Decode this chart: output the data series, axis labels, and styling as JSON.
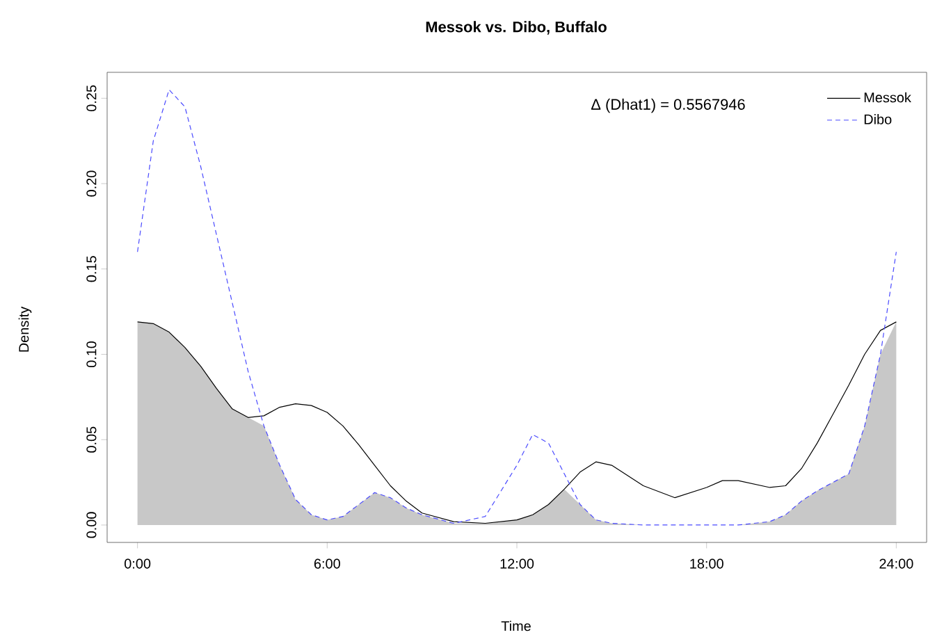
{
  "chart_data": {
    "type": "line",
    "title": "Messok vs. Dibo, Buffalo",
    "xlabel": "Time",
    "ylabel": "Density",
    "annotations": [
      "Δ (Dhat1) = 0.5567946"
    ],
    "xlim": [
      -0.96,
      24.96
    ],
    "ylim": [
      -0.0102,
      0.2652
    ],
    "xticks": [
      {
        "value": 0,
        "label": "0:00"
      },
      {
        "value": 6,
        "label": "6:00"
      },
      {
        "value": 12,
        "label": "12:00"
      },
      {
        "value": 18,
        "label": "18:00"
      },
      {
        "value": 24,
        "label": "24:00"
      }
    ],
    "yticks": [
      {
        "value": 0,
        "label": "0.00"
      },
      {
        "value": 0.05,
        "label": "0.05"
      },
      {
        "value": 0.1,
        "label": "0.10"
      },
      {
        "value": 0.15,
        "label": "0.15"
      },
      {
        "value": 0.2,
        "label": "0.20"
      },
      {
        "value": 0.25,
        "label": "0.25"
      }
    ],
    "grid": false,
    "legend": "top right",
    "marker": "none",
    "series": [
      {
        "type": "area",
        "color": "#c8c8c8",
        "x": [
          0,
          0.5,
          1,
          1.5,
          2,
          2.5,
          3,
          3.5,
          4,
          4.5,
          5,
          5.5,
          6,
          6.5,
          7,
          7.5,
          8,
          8.5,
          9,
          10,
          11,
          12,
          12.5,
          13,
          13.5,
          14,
          14.5,
          15,
          16,
          17,
          18,
          18.5,
          19,
          20,
          20.5,
          21,
          21.5,
          22,
          22.5,
          23,
          23.5,
          24
        ],
        "values": [
          0.119,
          0.118,
          0.113,
          0.104,
          0.093,
          0.08,
          0.068,
          0.063,
          0.058,
          0.035,
          0.015,
          0.006,
          0.003,
          0.005,
          0.012,
          0.019,
          0.016,
          0.01,
          0.006,
          0.001,
          0.001,
          0.003,
          0.006,
          0.012,
          0.021,
          0.012,
          0.003,
          0.001,
          0,
          0,
          0,
          0,
          0,
          0.002,
          0.006,
          0.014,
          0.02,
          0.025,
          0.03,
          0.058,
          0.1,
          0.119
        ]
      },
      {
        "name": "Messok",
        "color": "#000000",
        "line_style": "solid",
        "x": [
          0,
          0.5,
          1,
          1.5,
          2,
          2.5,
          3,
          3.5,
          4,
          4.5,
          5,
          5.5,
          6,
          6.5,
          7,
          7.5,
          8,
          8.5,
          9,
          10,
          11,
          12,
          12.5,
          13,
          13.5,
          14,
          14.5,
          15,
          16,
          17,
          18,
          18.5,
          19,
          20,
          20.5,
          21,
          21.5,
          22,
          22.5,
          23,
          23.5,
          24
        ],
        "values": [
          0.119,
          0.118,
          0.113,
          0.104,
          0.093,
          0.08,
          0.068,
          0.063,
          0.064,
          0.069,
          0.071,
          0.07,
          0.066,
          0.058,
          0.047,
          0.035,
          0.023,
          0.014,
          0.007,
          0.002,
          0.001,
          0.003,
          0.006,
          0.012,
          0.021,
          0.031,
          0.037,
          0.035,
          0.023,
          0.016,
          0.022,
          0.026,
          0.026,
          0.022,
          0.023,
          0.033,
          0.048,
          0.065,
          0.082,
          0.1,
          0.114,
          0.119
        ]
      },
      {
        "name": "Dibo",
        "color": "#4a4aff",
        "line_style": "dashed",
        "x": [
          0,
          0.5,
          1,
          1.5,
          2,
          2.5,
          3,
          3.5,
          4,
          4.5,
          5,
          5.5,
          6,
          6.5,
          7,
          7.5,
          8,
          8.5,
          9,
          10,
          11,
          12,
          12.5,
          13,
          13.5,
          14,
          14.5,
          15,
          16,
          17,
          18,
          18.5,
          19,
          20,
          20.5,
          21,
          21.5,
          22,
          22.5,
          23,
          23.5,
          24
        ],
        "values": [
          0.16,
          0.225,
          0.255,
          0.245,
          0.21,
          0.17,
          0.13,
          0.09,
          0.058,
          0.035,
          0.015,
          0.006,
          0.003,
          0.005,
          0.012,
          0.019,
          0.016,
          0.01,
          0.006,
          0.001,
          0.005,
          0.035,
          0.053,
          0.048,
          0.03,
          0.012,
          0.003,
          0.001,
          0,
          0,
          0,
          0,
          0,
          0.002,
          0.006,
          0.014,
          0.02,
          0.025,
          0.03,
          0.058,
          0.1,
          0.16
        ]
      }
    ]
  }
}
